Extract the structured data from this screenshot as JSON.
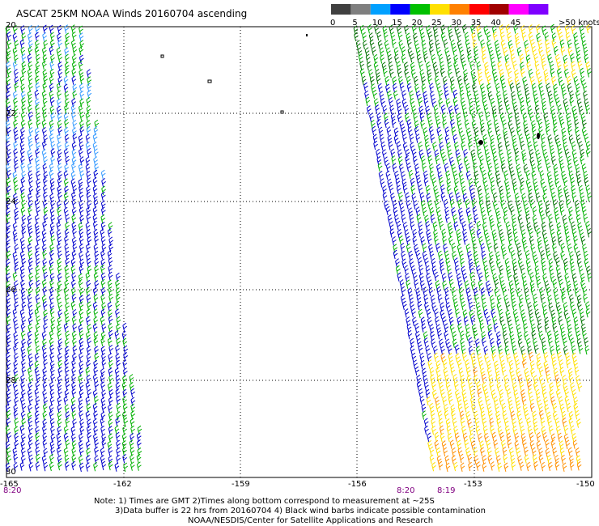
{
  "title": "ASCAT 25KM NOAA Winds 20160704 ascending",
  "legend": {
    "labels": [
      "0",
      "5",
      "10",
      "15",
      "20",
      "25",
      "30",
      "35",
      "40",
      "45",
      ">50 knots"
    ],
    "colors": [
      "#404040",
      "#7f7f7f",
      "#00a0ff",
      "#0000ff",
      "#00c000",
      "#ffe000",
      "#ff8000",
      "#ff0000",
      "#a00000",
      "#ff00ff",
      "#7f00ff"
    ]
  },
  "axes": {
    "lat_labels": [
      "20",
      "22",
      "24",
      "26",
      "28",
      "30"
    ],
    "lon_labels": [
      "-165",
      "-162",
      "-159",
      "-156",
      "-153",
      "-150"
    ]
  },
  "pass_times": [
    "8:20",
    "8:20",
    "8:19"
  ],
  "notes": {
    "line1": "Note: 1) Times are GMT 2)Times along bottom correspond to measurement at ~25S",
    "line2": "3)Data buffer is 22 hrs from 20160704 4) Black wind barbs indicate possible contamination",
    "line3": "NOAA/NESDIS/Center for Satellite Applications and Research"
  },
  "barb_colors": {
    "blue": "#0000cc",
    "green": "#00b000",
    "dark_green": "#007000",
    "yellow": "#ffe000",
    "orange": "#ff9000",
    "light_blue": "#3399ff"
  }
}
